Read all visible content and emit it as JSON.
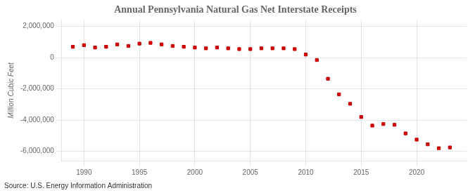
{
  "chart_data": {
    "type": "scatter",
    "title": "Annual Pennsylvania Natural Gas Net Interstate Receipts",
    "ylabel": "Million Cubic Feet",
    "annotation": "Source: U.S. Energy Information Administration",
    "x": [
      1989,
      1990,
      1991,
      1992,
      1993,
      1994,
      1995,
      1996,
      1997,
      1998,
      1999,
      2000,
      2001,
      2002,
      2003,
      2004,
      2005,
      2006,
      2007,
      2008,
      2009,
      2010,
      2011,
      2012,
      2013,
      2014,
      2015,
      2016,
      2017,
      2018,
      2019,
      2020,
      2021,
      2022,
      2023
    ],
    "values": [
      700000,
      800000,
      650000,
      700000,
      850000,
      750000,
      900000,
      950000,
      850000,
      750000,
      700000,
      650000,
      600000,
      650000,
      600000,
      550000,
      550000,
      600000,
      600000,
      600000,
      550000,
      200000,
      -150000,
      -1350000,
      -2350000,
      -2950000,
      -3800000,
      -4350000,
      -4250000,
      -4300000,
      -4850000,
      -5250000,
      -5550000,
      -5800000,
      -5750000
    ],
    "color": "#cc0000",
    "marker": "square",
    "xlim": [
      1988.0,
      2024.5
    ],
    "xticks": [
      1990,
      1995,
      2000,
      2005,
      2010,
      2015,
      2020
    ],
    "ylim": [
      -6600000,
      2400000
    ],
    "yticks": [
      {
        "value": -6000000,
        "label": "-6,000,000"
      },
      {
        "value": -4000000,
        "label": "-4,000,000"
      },
      {
        "value": -2000000,
        "label": "-2,000,000"
      },
      0,
      {
        "value": 2000000,
        "label": "2,000,000"
      }
    ],
    "grid": true
  }
}
